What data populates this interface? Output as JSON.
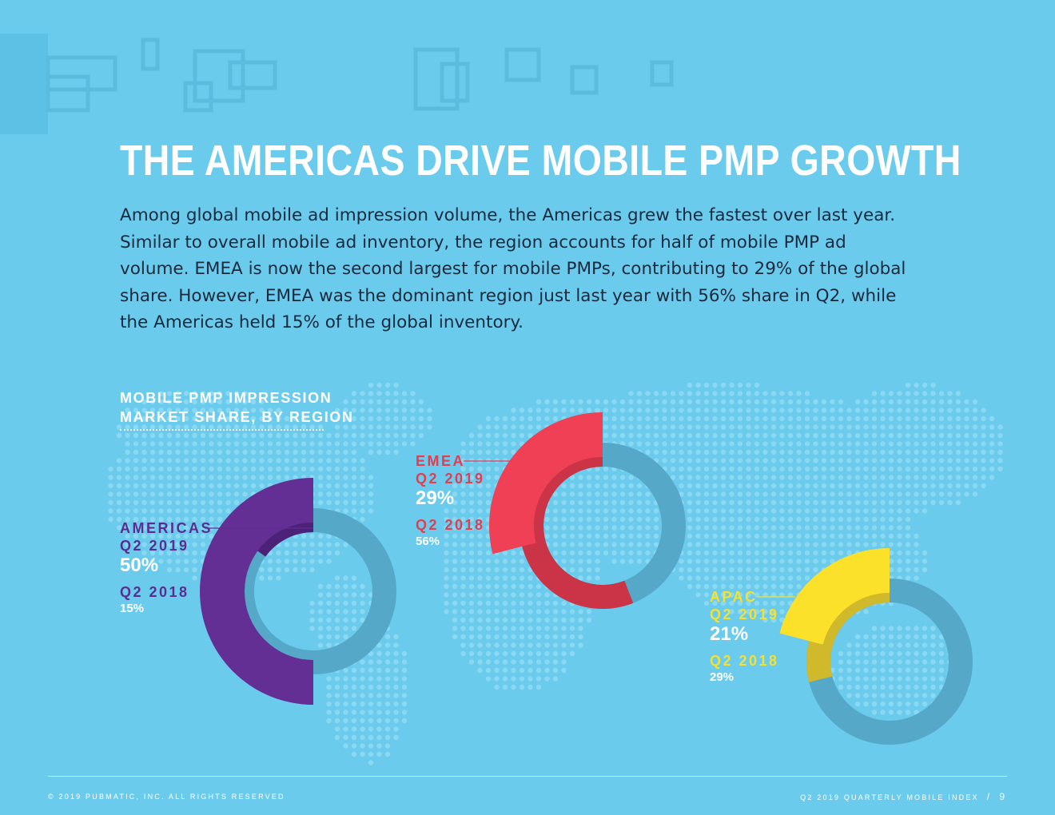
{
  "page": {
    "title": "THE AMERICAS DRIVE MOBILE PMP GROWTH",
    "body": "Among global mobile ad impression volume, the Americas grew the fastest over last year. Similar to overall mobile ad inventory, the region accounts for half of mobile PMP ad volume. EMEA is now the second largest for mobile PMPs, contributing to 29% of the global share. However, EMEA was the dominant region just last year with 56% share in Q2, while the Americas held 15% of the global inventory.",
    "footer_left": "© 2019 PUBMATIC, INC. ALL RIGHTS RESERVED",
    "footer_right": "Q2 2019 QUARTERLY MOBILE INDEX",
    "footer_sep": "/",
    "page_number": "9"
  },
  "chart_data": {
    "type": "donut",
    "title_lines": [
      "MOBILE PMP IMPRESSION",
      "MARKET SHARE, BY REGION"
    ],
    "series_names": [
      "Q2 2019",
      "Q2 2018"
    ],
    "unit": "%",
    "regions": [
      {
        "name": "AMERICAS",
        "q2_2019_label": "Q2 2019",
        "q2_2019": 50,
        "q2_2019_text": "50%",
        "q2_2018_label": "Q2 2018",
        "q2_2018": 15,
        "q2_2018_text": "15%",
        "color": "#632f94",
        "inner_color": "#4b2278",
        "label_color": "#5c2d91"
      },
      {
        "name": "EMEA",
        "q2_2019_label": "Q2 2019",
        "q2_2019": 29,
        "q2_2019_text": "29%",
        "q2_2018_label": "Q2 2018",
        "q2_2018": 56,
        "q2_2018_text": "56%",
        "color": "#ef4055",
        "inner_color": "#cb3447",
        "label_color": "#e63c50"
      },
      {
        "name": "APAC",
        "q2_2019_label": "Q2 2019",
        "q2_2019": 21,
        "q2_2019_text": "21%",
        "q2_2018_label": "Q2 2018",
        "q2_2018": 29,
        "q2_2018_text": "29%",
        "color": "#fbe12a",
        "inner_color": "#d0b92a",
        "label_color": "#f6e12c"
      }
    ],
    "track_color": "#56a8c8"
  }
}
